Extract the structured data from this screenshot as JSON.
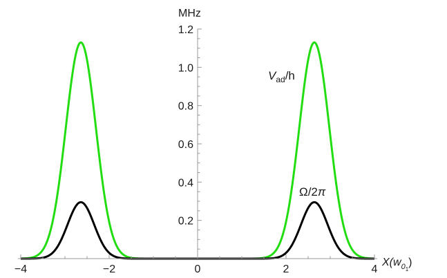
{
  "chart_data": {
    "type": "line",
    "xlabel": {
      "main": "X(",
      "sub1": "w",
      "sub2": "0",
      "sub3": "1",
      "close": ")"
    },
    "ylabel": "MHz",
    "xlim": [
      -4,
      4
    ],
    "ylim": [
      0,
      1.2
    ],
    "x_ticks": [
      {
        "value": -4,
        "label": "−4"
      },
      {
        "value": -2,
        "label": "−2"
      },
      {
        "value": 0,
        "label": "0"
      },
      {
        "value": 2,
        "label": "2"
      },
      {
        "value": 4,
        "label": "4"
      }
    ],
    "y_ticks": [
      {
        "value": 0.2,
        "label": "0.2"
      },
      {
        "value": 0.4,
        "label": "0.4"
      },
      {
        "value": 0.6,
        "label": "0.6"
      },
      {
        "value": 0.8,
        "label": "0.8"
      },
      {
        "value": 1.0,
        "label": "1.0"
      },
      {
        "value": 1.2,
        "label": "1.2"
      }
    ],
    "grid": false,
    "legend": "none",
    "series": [
      {
        "name": "V_ad/h",
        "label_main": "V",
        "label_sub": "ad",
        "label_rest": "/h",
        "color": "#22dd11",
        "peaks": [
          {
            "x": -2.64,
            "y": 1.13
          },
          {
            "x": 2.64,
            "y": 1.13
          }
        ],
        "sigma": 0.34
      },
      {
        "name": "Ω/2π",
        "label_text": "Ω/2",
        "label_pi": "π",
        "color": "#000000",
        "peaks": [
          {
            "x": -2.64,
            "y": 0.295
          },
          {
            "x": 2.64,
            "y": 0.295
          }
        ],
        "sigma": 0.3
      }
    ]
  }
}
